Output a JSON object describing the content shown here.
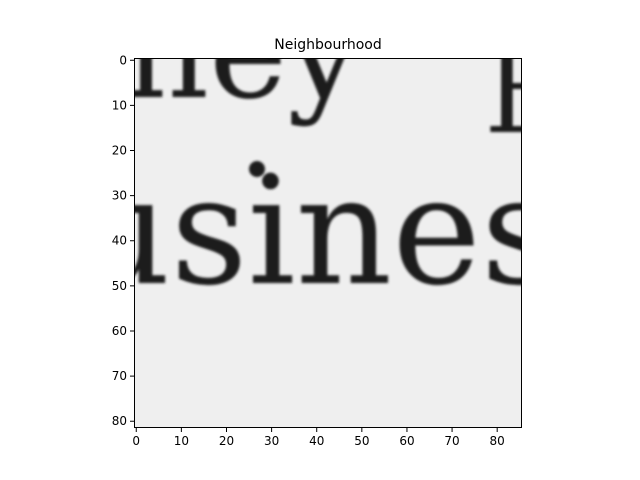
{
  "chart_data": {
    "type": "heatmap",
    "title": "Neighbourhood",
    "xlabel": "",
    "ylabel": "",
    "colormap": "grayscale",
    "image_shape": [
      82,
      86
    ],
    "xlim": [
      -0.5,
      85.5
    ],
    "ylim": [
      81.5,
      -0.5
    ],
    "x_ticks": [
      0,
      10,
      20,
      30,
      40,
      50,
      60,
      70,
      80
    ],
    "y_ticks": [
      0,
      10,
      20,
      30,
      40,
      50,
      60,
      70,
      80
    ],
    "x_tick_labels": [
      "0",
      "10",
      "20",
      "30",
      "40",
      "50",
      "60",
      "70",
      "80"
    ],
    "y_tick_labels": [
      "0",
      "10",
      "20",
      "30",
      "40",
      "50",
      "60",
      "70",
      "80"
    ],
    "content": {
      "upper_line_fragment": "ney",
      "upper_right_fragment": "B",
      "lower_line_fragment": "usiness"
    },
    "colors": {
      "ink": "#1a1a1a",
      "paper": "#efefef",
      "axis": "#000000"
    }
  }
}
